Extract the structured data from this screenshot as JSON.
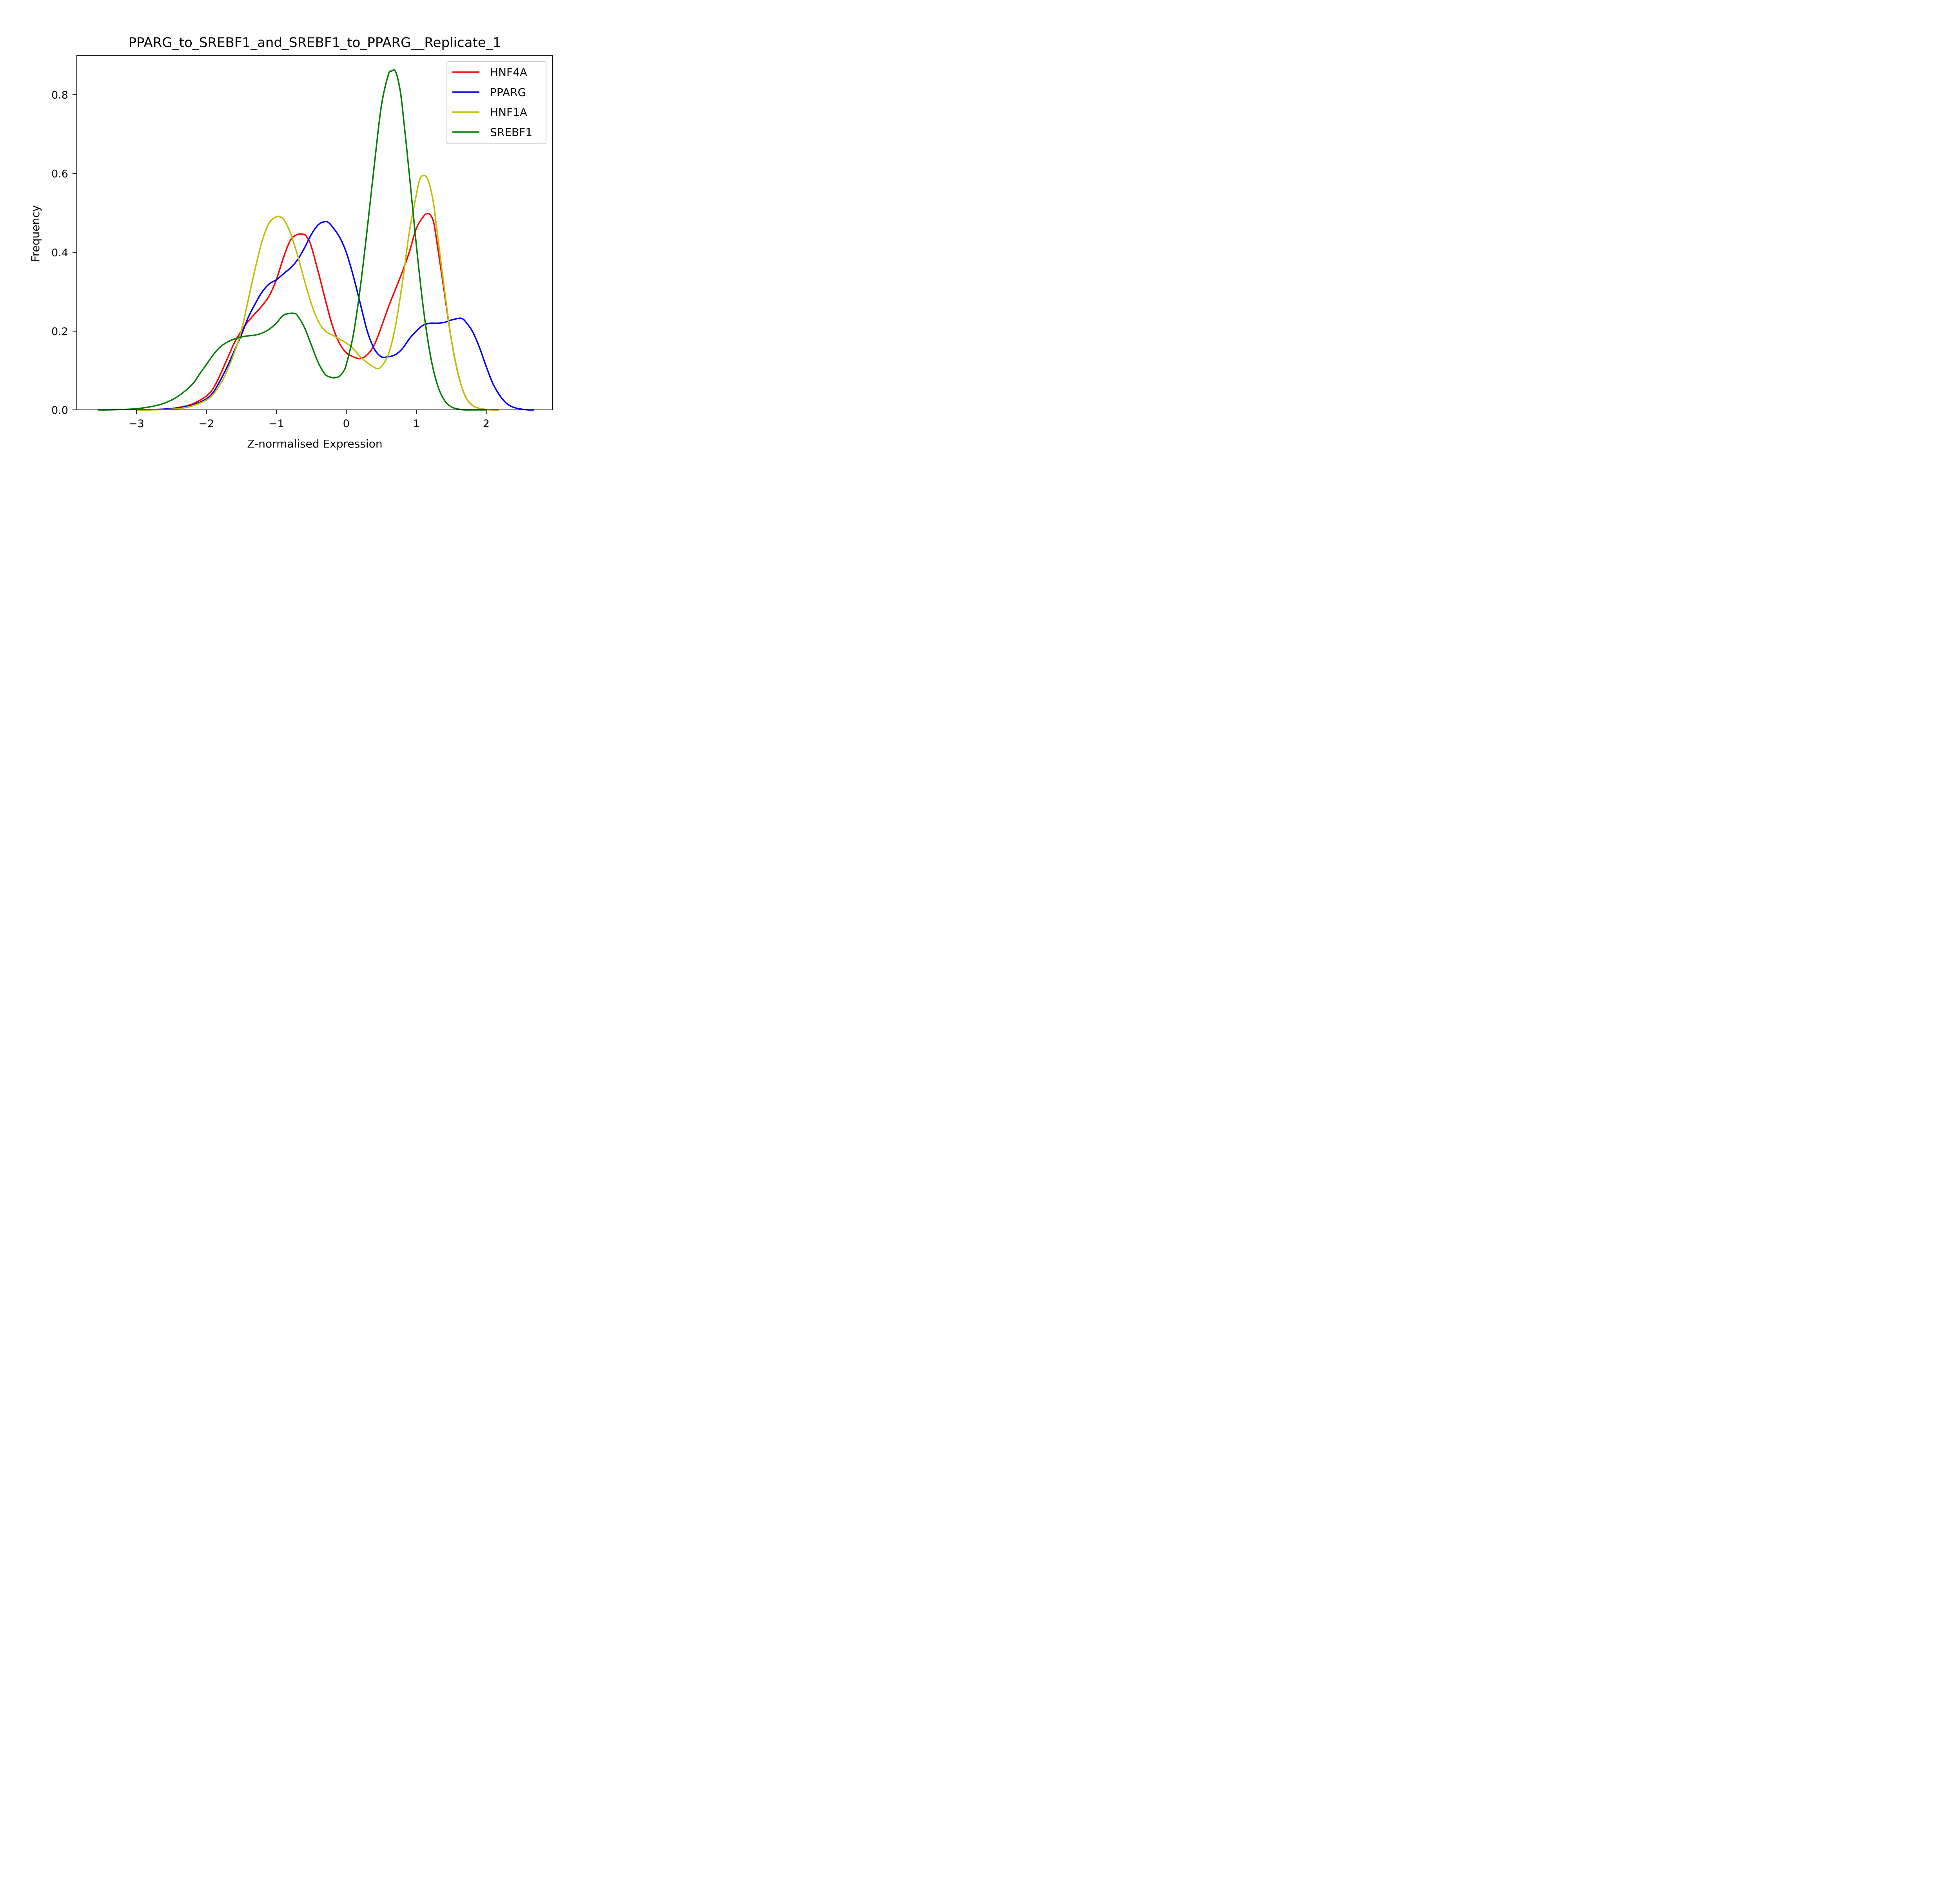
{
  "chart_data": {
    "type": "line",
    "title": "PPARG_to_SREBF1_and_SREBF1_to_PPARG__Replicate_1",
    "xlabel": "Z-normalised Expression",
    "ylabel": "Frequency",
    "xlim": [
      -3.85,
      2.95
    ],
    "ylim": [
      0,
      0.9
    ],
    "xticks": [
      -3,
      -2,
      -1,
      0,
      1,
      2
    ],
    "xtick_labels": [
      "−3",
      "−2",
      "−1",
      "0",
      "1",
      "2"
    ],
    "yticks": [
      0.0,
      0.2,
      0.4,
      0.6,
      0.8
    ],
    "ytick_labels": [
      "0.0",
      "0.2",
      "0.4",
      "0.6",
      "0.8"
    ],
    "grid": false,
    "legend_position": "top-right",
    "series": [
      {
        "name": "HNF4A",
        "color": "#ff0000",
        "x": [
          -3.0,
          -2.8,
          -2.6,
          -2.4,
          -2.2,
          -2.0,
          -1.9,
          -1.8,
          -1.7,
          -1.6,
          -1.5,
          -1.4,
          -1.3,
          -1.2,
          -1.1,
          -1.0,
          -0.9,
          -0.8,
          -0.7,
          -0.6,
          -0.55,
          -0.5,
          -0.4,
          -0.3,
          -0.2,
          -0.1,
          0.0,
          0.1,
          0.2,
          0.3,
          0.4,
          0.5,
          0.6,
          0.7,
          0.8,
          0.9,
          1.0,
          1.1,
          1.15,
          1.2,
          1.25,
          1.3,
          1.4,
          1.5,
          1.6,
          1.7,
          1.8,
          1.9,
          2.0,
          2.1,
          2.18
        ],
        "y": [
          0.0,
          0.001,
          0.002,
          0.006,
          0.015,
          0.035,
          0.055,
          0.09,
          0.13,
          0.17,
          0.2,
          0.225,
          0.245,
          0.265,
          0.29,
          0.33,
          0.385,
          0.43,
          0.445,
          0.445,
          0.435,
          0.415,
          0.35,
          0.28,
          0.215,
          0.17,
          0.145,
          0.135,
          0.13,
          0.14,
          0.165,
          0.21,
          0.26,
          0.305,
          0.35,
          0.4,
          0.46,
          0.49,
          0.498,
          0.495,
          0.475,
          0.42,
          0.3,
          0.18,
          0.09,
          0.035,
          0.012,
          0.004,
          0.001,
          0.0,
          0.0
        ]
      },
      {
        "name": "PPARG",
        "color": "#0000ff",
        "x": [
          -3.0,
          -2.8,
          -2.6,
          -2.4,
          -2.2,
          -2.0,
          -1.9,
          -1.8,
          -1.7,
          -1.6,
          -1.5,
          -1.4,
          -1.3,
          -1.2,
          -1.1,
          -1.0,
          -0.9,
          -0.8,
          -0.7,
          -0.6,
          -0.5,
          -0.4,
          -0.3,
          -0.25,
          -0.2,
          -0.1,
          0.0,
          0.1,
          0.2,
          0.3,
          0.4,
          0.5,
          0.6,
          0.7,
          0.8,
          0.9,
          1.0,
          1.1,
          1.2,
          1.3,
          1.4,
          1.5,
          1.6,
          1.65,
          1.7,
          1.8,
          1.9,
          2.0,
          2.1,
          2.2,
          2.3,
          2.4,
          2.5,
          2.6,
          2.68
        ],
        "y": [
          0.0,
          0.001,
          0.002,
          0.005,
          0.012,
          0.028,
          0.045,
          0.075,
          0.11,
          0.15,
          0.19,
          0.235,
          0.27,
          0.3,
          0.32,
          0.33,
          0.345,
          0.36,
          0.38,
          0.41,
          0.445,
          0.47,
          0.478,
          0.475,
          0.465,
          0.44,
          0.4,
          0.34,
          0.27,
          0.2,
          0.155,
          0.135,
          0.135,
          0.14,
          0.155,
          0.18,
          0.2,
          0.215,
          0.22,
          0.22,
          0.222,
          0.228,
          0.232,
          0.232,
          0.225,
          0.2,
          0.16,
          0.11,
          0.065,
          0.035,
          0.015,
          0.006,
          0.002,
          0.0,
          0.0
        ]
      },
      {
        "name": "HNF1A",
        "color": "#bfbf00",
        "x": [
          -3.0,
          -2.8,
          -2.6,
          -2.4,
          -2.2,
          -2.0,
          -1.9,
          -1.8,
          -1.7,
          -1.6,
          -1.5,
          -1.4,
          -1.3,
          -1.2,
          -1.1,
          -1.0,
          -0.95,
          -0.9,
          -0.85,
          -0.8,
          -0.7,
          -0.6,
          -0.5,
          -0.4,
          -0.3,
          -0.2,
          -0.1,
          0.0,
          0.1,
          0.2,
          0.3,
          0.4,
          0.45,
          0.5,
          0.6,
          0.7,
          0.8,
          0.9,
          1.0,
          1.05,
          1.1,
          1.15,
          1.2,
          1.25,
          1.3,
          1.4,
          1.5,
          1.6,
          1.7,
          1.8,
          1.9,
          2.0,
          2.1,
          2.18
        ],
        "y": [
          0.0,
          0.0,
          0.001,
          0.003,
          0.01,
          0.025,
          0.04,
          0.065,
          0.1,
          0.145,
          0.2,
          0.28,
          0.36,
          0.43,
          0.475,
          0.49,
          0.49,
          0.485,
          0.47,
          0.45,
          0.395,
          0.33,
          0.27,
          0.225,
          0.2,
          0.19,
          0.18,
          0.17,
          0.155,
          0.135,
          0.12,
          0.108,
          0.105,
          0.11,
          0.14,
          0.21,
          0.32,
          0.45,
          0.545,
          0.585,
          0.595,
          0.59,
          0.565,
          0.52,
          0.45,
          0.31,
          0.18,
          0.09,
          0.035,
          0.012,
          0.004,
          0.001,
          0.0,
          0.0
        ]
      },
      {
        "name": "SREBF1",
        "color": "#008000",
        "x": [
          -3.55,
          -3.4,
          -3.2,
          -3.0,
          -2.8,
          -2.6,
          -2.4,
          -2.2,
          -2.1,
          -2.0,
          -1.9,
          -1.8,
          -1.7,
          -1.6,
          -1.5,
          -1.4,
          -1.3,
          -1.2,
          -1.1,
          -1.0,
          -0.9,
          -0.8,
          -0.75,
          -0.7,
          -0.6,
          -0.5,
          -0.4,
          -0.3,
          -0.2,
          -0.15,
          -0.1,
          -0.05,
          0.0,
          0.1,
          0.2,
          0.3,
          0.4,
          0.5,
          0.6,
          0.65,
          0.7,
          0.75,
          0.8,
          0.9,
          1.0,
          1.1,
          1.2,
          1.3,
          1.4,
          1.5,
          1.6,
          1.7,
          1.8,
          1.9,
          2.0
        ],
        "y": [
          0.0,
          0.0,
          0.001,
          0.003,
          0.008,
          0.017,
          0.035,
          0.065,
          0.09,
          0.115,
          0.14,
          0.16,
          0.172,
          0.18,
          0.185,
          0.188,
          0.19,
          0.195,
          0.205,
          0.22,
          0.24,
          0.245,
          0.245,
          0.24,
          0.21,
          0.165,
          0.12,
          0.09,
          0.082,
          0.082,
          0.085,
          0.095,
          0.115,
          0.19,
          0.31,
          0.46,
          0.62,
          0.77,
          0.85,
          0.86,
          0.86,
          0.83,
          0.77,
          0.6,
          0.42,
          0.26,
          0.14,
          0.065,
          0.025,
          0.008,
          0.002,
          0.0,
          0.0,
          0.0,
          0.0
        ]
      }
    ]
  }
}
